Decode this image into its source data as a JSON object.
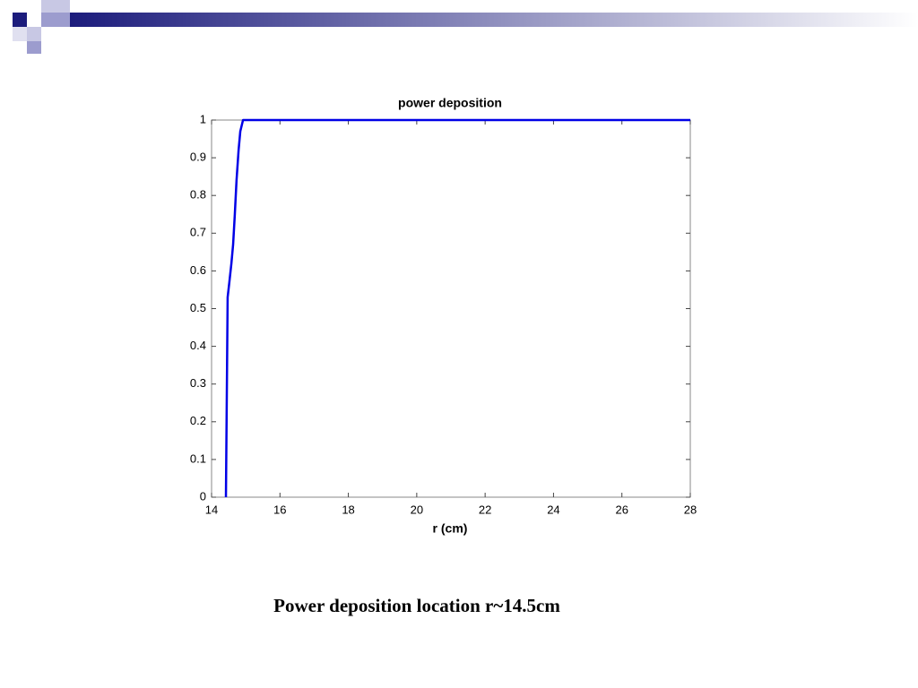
{
  "chart_data": {
    "type": "line",
    "title": "power deposition",
    "xlabel": "r (cm)",
    "x": [
      14.42,
      14.47,
      14.52,
      14.58,
      14.63,
      14.68,
      14.73,
      14.79,
      14.84,
      14.92,
      28
    ],
    "series": [
      {
        "color": "#0000e6",
        "values": [
          0,
          0.53,
          0.57,
          0.62,
          0.67,
          0.75,
          0.84,
          0.92,
          0.97,
          1,
          1
        ]
      }
    ],
    "xlim": [
      14,
      28
    ],
    "xticks": [
      14,
      16,
      18,
      20,
      22,
      24,
      26,
      28
    ],
    "ylim": [
      0,
      1
    ],
    "yticks": [
      0,
      0.1,
      0.2,
      0.3,
      0.4,
      0.5,
      0.6,
      0.7,
      0.8,
      0.9,
      1
    ],
    "grid": false
  },
  "slide": {
    "caption": "Power deposition location r~14.5cm"
  }
}
